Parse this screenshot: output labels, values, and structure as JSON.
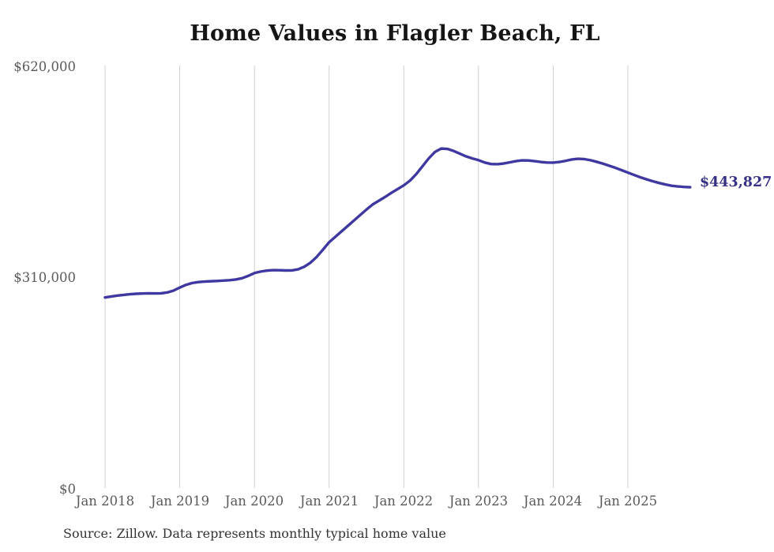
{
  "chart_data": {
    "type": "line",
    "title": "Home Values in Flagler Beach, FL",
    "x_start": "Jan 2018",
    "frequency": "monthly",
    "x_ticks": [
      "Jan 2018",
      "Jan 2019",
      "Jan 2020",
      "Jan 2021",
      "Jan 2022",
      "Jan 2023",
      "Jan 2024",
      "Jan 2025"
    ],
    "y_ticks": [
      "$620,000",
      "$310,000",
      "$0"
    ],
    "ylim": [
      0,
      620000
    ],
    "grid": "vertical-only",
    "legend": "none",
    "end_label": "$443,827",
    "end_value": 443827,
    "series": [
      {
        "name": "Monthly typical home value",
        "values": [
          282000,
          283400,
          284700,
          285800,
          286700,
          287400,
          287800,
          288000,
          287900,
          288100,
          289300,
          292000,
          296500,
          300500,
          303200,
          304600,
          305300,
          305800,
          306200,
          306700,
          307300,
          308300,
          310200,
          313600,
          317800,
          320000,
          321400,
          322100,
          322000,
          321600,
          321700,
          323300,
          327000,
          333000,
          341500,
          352000,
          363000,
          371000,
          379000,
          387000,
          395000,
          403000,
          411000,
          418500,
          424000,
          429500,
          435500,
          441000,
          446500,
          453500,
          463000,
          474500,
          486000,
          495500,
          500500,
          500000,
          497000,
          493000,
          489000,
          486000,
          483500,
          480000,
          477800,
          477500,
          478500,
          480200,
          482000,
          483200,
          483000,
          482000,
          480800,
          480000,
          479800,
          480800,
          482500,
          484500,
          485500,
          485000,
          483400,
          481000,
          478300,
          475300,
          472200,
          468800,
          465200,
          461700,
          458300,
          455300,
          452500,
          450000,
          447800,
          446000,
          444900,
          444200,
          443827
        ]
      }
    ]
  },
  "colors": {
    "line": "#3f38a0",
    "value_label": "#363184",
    "title_text": "#151515",
    "axis_text": "#5a5a5a",
    "source_text": "#333333",
    "gridline": "#cfcfcf",
    "background": "#ffffff"
  },
  "source_note": "Source: Zillow. Data represents monthly typical home value"
}
